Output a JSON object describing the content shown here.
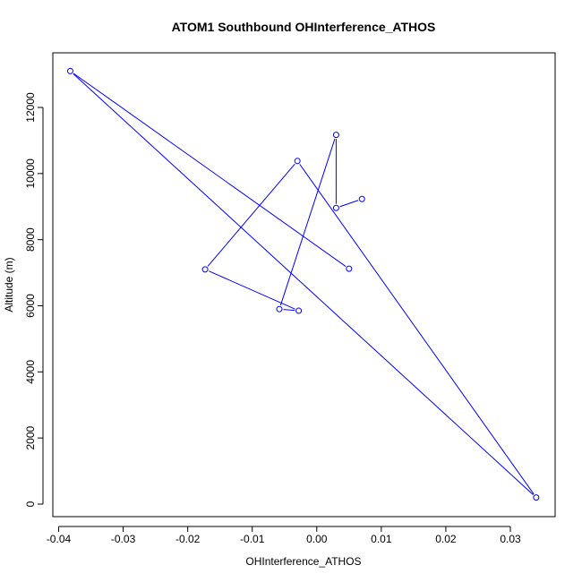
{
  "chart_data": {
    "type": "line",
    "title": "ATOM1 Southbound OHInterference_ATHOS",
    "xlabel": "OHInterference_ATHOS",
    "ylabel": "Altitude (m)",
    "xlim": [
      -0.04,
      0.035
    ],
    "ylim": [
      0,
      13000
    ],
    "x_ticks": [
      -0.04,
      -0.03,
      -0.02,
      -0.01,
      0.0,
      0.01,
      0.02,
      0.03
    ],
    "x_tick_labels": [
      "-0.04",
      "-0.03",
      "-0.02",
      "-0.01",
      "0.00",
      "0.01",
      "0.02",
      "0.03"
    ],
    "y_ticks": [
      0,
      2000,
      4000,
      6000,
      8000,
      10000,
      12000
    ],
    "y_tick_labels": [
      "0",
      "2000",
      "4000",
      "6000",
      "8000",
      "10000",
      "12000"
    ],
    "grid": false,
    "legend": "none",
    "series": [
      {
        "color": "#0000ff",
        "marker": "open-circle",
        "points": [
          {
            "x": 0.007,
            "y": 9230
          },
          {
            "x": 0.003,
            "y": 8960
          },
          {
            "x": 0.003,
            "y": 11170
          },
          {
            "x": -0.0058,
            "y": 5900
          },
          {
            "x": -0.0028,
            "y": 5850
          },
          {
            "x": -0.0173,
            "y": 7100
          },
          {
            "x": -0.003,
            "y": 10380
          },
          {
            "x": 0.034,
            "y": 200
          },
          {
            "x": -0.0382,
            "y": 13100
          },
          {
            "x": 0.005,
            "y": 7120
          }
        ]
      }
    ]
  }
}
